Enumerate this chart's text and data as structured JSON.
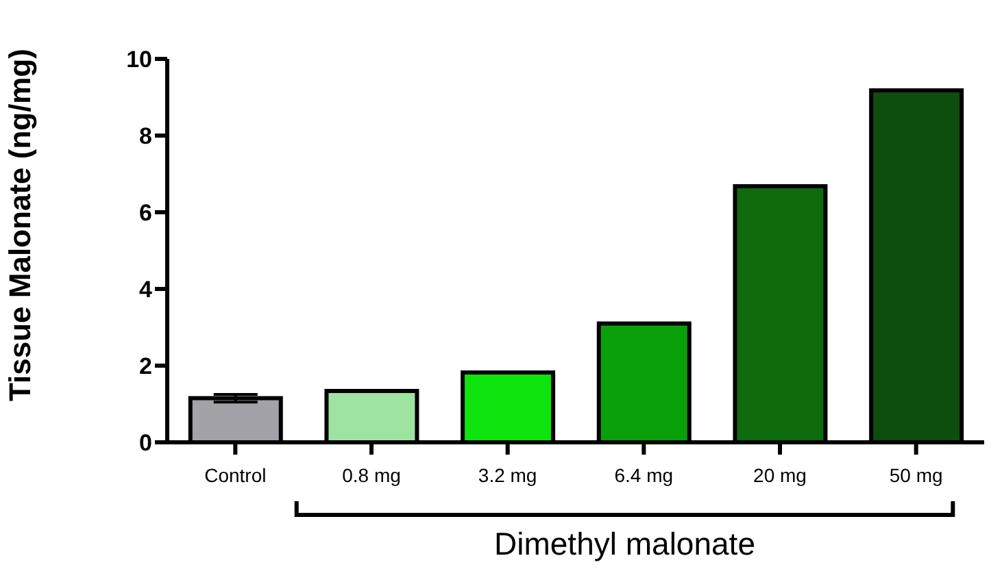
{
  "chart_data": {
    "type": "bar",
    "ylabel": "Tissue Malonate (ng/mg)",
    "xlabel": "Dimethyl malonate",
    "categories": [
      "Control",
      "0.8 mg",
      "3.2 mg",
      "6.4 mg",
      "20 mg",
      "50 mg"
    ],
    "values": [
      1.15,
      1.34,
      1.82,
      3.1,
      6.68,
      9.18
    ],
    "errors": [
      0.1,
      null,
      null,
      null,
      null,
      null
    ],
    "colors": [
      "#a3a2a8",
      "#9ee3a2",
      "#0ee40e",
      "#0aa00a",
      "#0e6b0e",
      "#0d4d0d"
    ],
    "ylim": [
      0,
      10
    ],
    "yticks": [
      0,
      2,
      4,
      6,
      8,
      10
    ]
  }
}
